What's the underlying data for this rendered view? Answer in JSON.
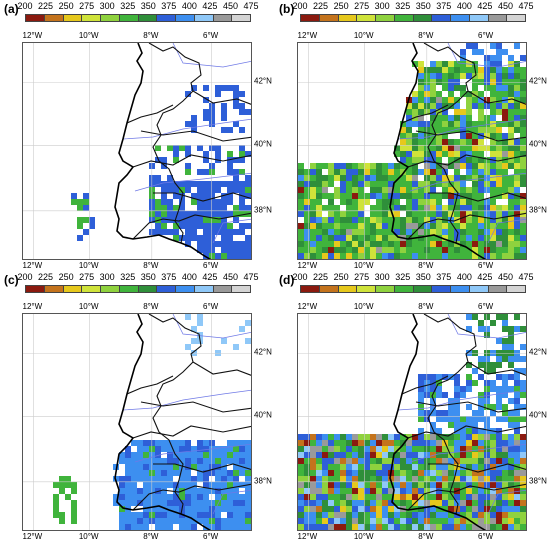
{
  "scale": {
    "ticks": [
      "200",
      "225",
      "250",
      "275",
      "300",
      "325",
      "350",
      "375",
      "400",
      "425",
      "450",
      "475"
    ],
    "colors": [
      "#8b1a0f",
      "#c4731c",
      "#e6c81c",
      "#cfe33a",
      "#8fd23e",
      "#40b43c",
      "#2f8f3a",
      "#2e5fd8",
      "#3d8ff0",
      "#8fc8f8",
      "#9a9a9a",
      "#d4d4d4"
    ]
  },
  "axes": {
    "lon_labels": [
      "12°W",
      "10°W",
      "8°W",
      "6°W"
    ],
    "lat_labels": [
      "42°N",
      "40°N",
      "38°N"
    ]
  },
  "panels": [
    {
      "label": "(a)"
    },
    {
      "label": "(b)"
    },
    {
      "label": "(c)"
    },
    {
      "label": "(d)"
    }
  ]
}
